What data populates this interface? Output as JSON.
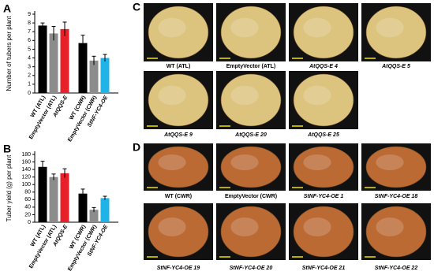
{
  "chart_data": [
    {
      "type": "bar",
      "panel": "A",
      "y_label": "Number of tubers per plant",
      "categories": [
        "WT (ATL)",
        "EmptyVector (ATL)",
        "AtQQS-E",
        "WT (CWR)",
        "EmptyVector (CWR)",
        "StNF-YC4-OE"
      ],
      "values": [
        7.7,
        6.8,
        7.3,
        5.7,
        3.7,
        4.0
      ],
      "errors": [
        0.3,
        0.8,
        0.8,
        0.9,
        0.5,
        0.4
      ],
      "colors": [
        "#000000",
        "#8c8c8c",
        "#e8202a",
        "#000000",
        "#8c8c8c",
        "#1fb3e8"
      ],
      "ylim": [
        0,
        9
      ],
      "yticks": [
        0,
        1,
        2,
        3,
        4,
        5,
        6,
        7,
        8,
        9
      ]
    },
    {
      "type": "bar",
      "panel": "B",
      "y_label": "Tuber yield (g) per plant",
      "categories": [
        "WT (ATL)",
        "EmptyVector (ATL)",
        "AtQQS-E",
        "WT (CWR)",
        "EmptyVector (CWR)",
        "StNF-YC4-OE"
      ],
      "values": [
        147,
        120,
        130,
        76,
        33,
        64
      ],
      "errors": [
        15,
        8,
        12,
        12,
        6,
        5
      ],
      "colors": [
        "#000000",
        "#8c8c8c",
        "#e8202a",
        "#000000",
        "#8c8c8c",
        "#1fb3e8"
      ],
      "ylim": [
        0,
        180
      ],
      "yticks": [
        0,
        20,
        40,
        60,
        80,
        100,
        120,
        140,
        160,
        180
      ]
    }
  ],
  "photo_panels": [
    {
      "panel": "C",
      "potato_color": "#dcc47e",
      "captions": [
        "WT (ATL)",
        "EmptyVector (ATL)",
        "AtQQS-E 4",
        "AtQQS-E 5",
        "AtQQS-E 9",
        "AtQQS-E 20",
        "AtQQS-E 25"
      ]
    },
    {
      "panel": "D",
      "potato_color": "#bb6a34",
      "captions": [
        "WT (CWR)",
        "EmptyVector (CWR)",
        "StNF-YC4-OE 1",
        "StNF-YC4-OE 18",
        "StNF-YC4-OE 19",
        "StNF-YC4-OE 20",
        "StNF-YC4-OE 21",
        "StNF-YC4-OE 22"
      ]
    }
  ]
}
